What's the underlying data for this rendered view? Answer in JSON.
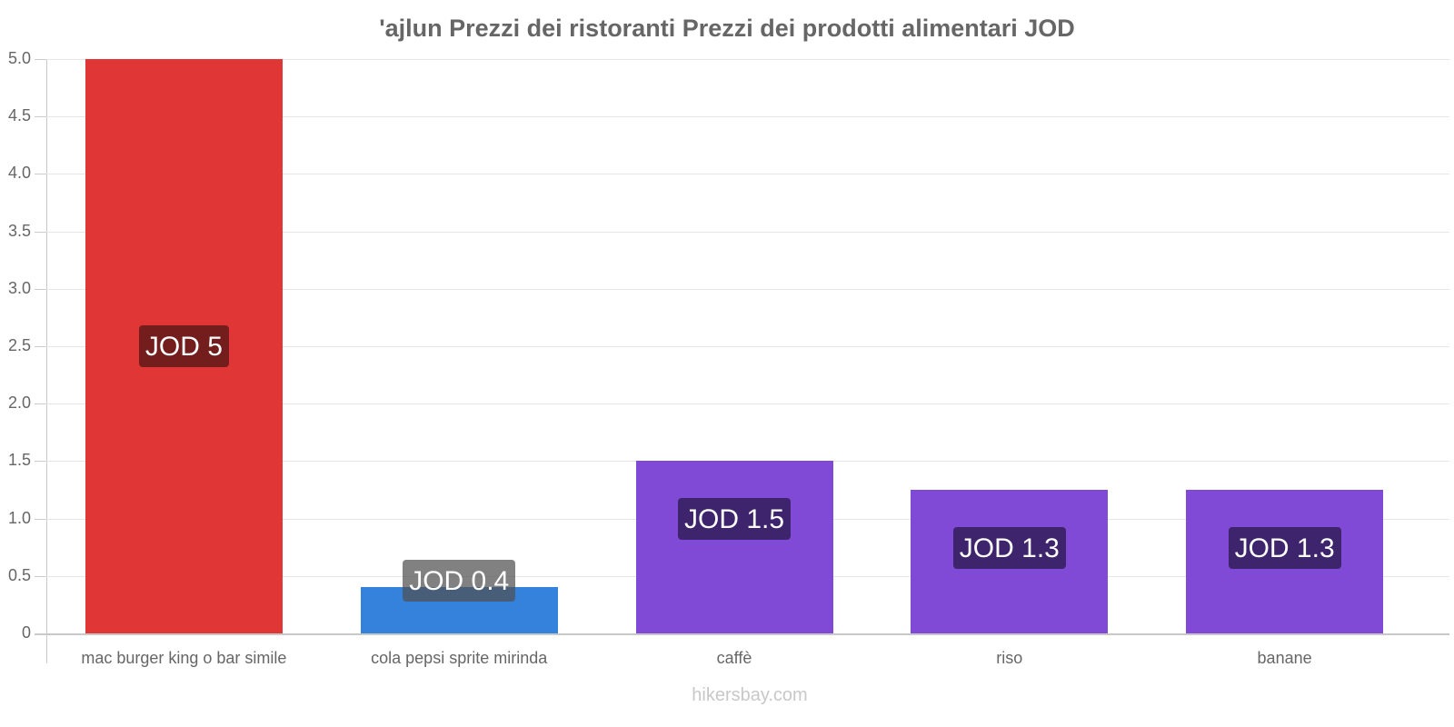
{
  "chart_data": {
    "type": "bar",
    "title": "'ajlun Prezzi dei ristoranti Prezzi dei prodotti alimentari JOD",
    "xlabel": "",
    "ylabel": "",
    "ylim": [
      0,
      5
    ],
    "yticks": [
      "0",
      "0.5",
      "1.0",
      "1.5",
      "2.0",
      "2.5",
      "3.0",
      "3.5",
      "4.0",
      "4.5",
      "5.0"
    ],
    "grid": true,
    "legend": null,
    "categories": [
      "mac burger king o bar simile",
      "cola pepsi sprite mirinda",
      "caffè",
      "riso",
      "banane"
    ],
    "values": [
      5,
      0.4,
      1.5,
      1.25,
      1.25
    ],
    "value_labels": [
      "JOD 5",
      "JOD 0.4",
      "JOD 1.5",
      "JOD 1.3",
      "JOD 1.3"
    ],
    "colors": [
      "#e03636",
      "#3582dd",
      "#804ad6",
      "#804ad6",
      "#804ad6"
    ],
    "label_bg_colors": [
      "#731d1d",
      "rgba(80,80,80,0.72)",
      "#3e246c",
      "#3e246c",
      "#3e246c"
    ]
  },
  "watermark": "hikersbay.com"
}
